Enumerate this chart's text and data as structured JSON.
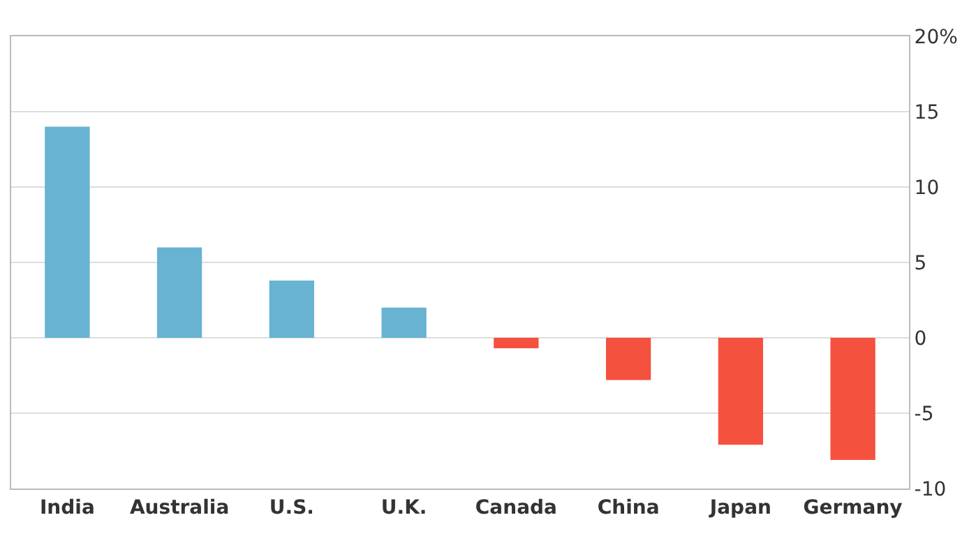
{
  "chart_data": {
    "type": "bar",
    "categories": [
      "India",
      "Australia",
      "U.S.",
      "U.K.",
      "Canada",
      "China",
      "Japan",
      "Germany"
    ],
    "values": [
      14.0,
      6.0,
      3.8,
      2.0,
      -0.7,
      -2.8,
      -7.1,
      -8.1
    ],
    "colors": [
      "#67b3d1",
      "#67b3d1",
      "#67b3d1",
      "#67b3d1",
      "#f5513f",
      "#f5513f",
      "#f5513f",
      "#f5513f"
    ],
    "ylim": [
      -10,
      20
    ],
    "yticks": [
      {
        "value": -10,
        "label": "-10"
      },
      {
        "value": -5,
        "label": "-5"
      },
      0,
      5,
      10,
      15,
      {
        "value": 20,
        "label": "20%"
      }
    ],
    "grid": "y"
  }
}
